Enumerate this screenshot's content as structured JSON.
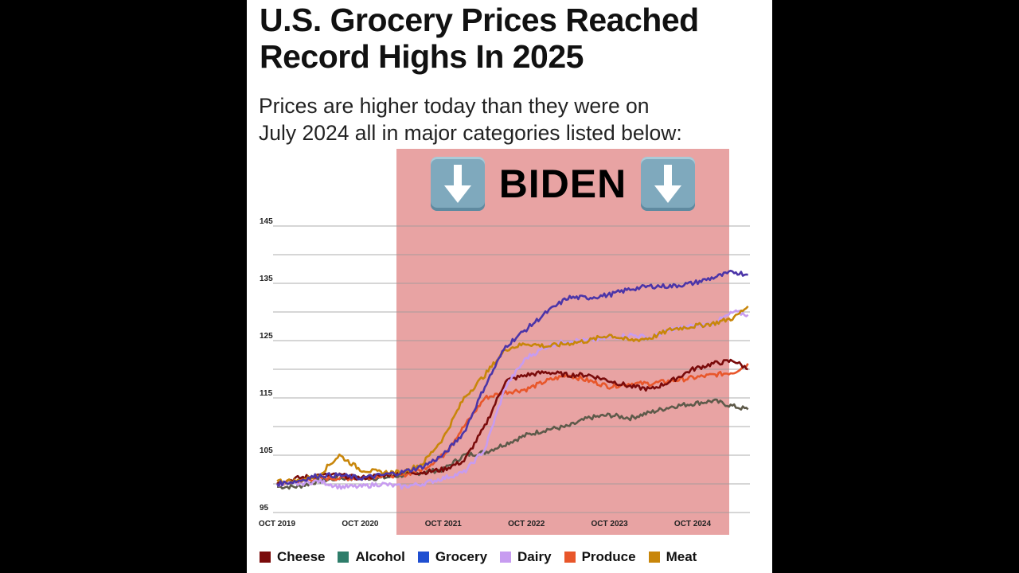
{
  "title": "U.S. Grocery Prices Reached Record Highs In 2025",
  "subtitle_lines": [
    "Prices are higher today than they were on",
    "July 2024 all in major categories listed below:"
  ],
  "banner": {
    "text": "BIDEN",
    "icon": "down-arrow-emoji-icon"
  },
  "chart_data": {
    "type": "line",
    "title": "U.S. Grocery Prices Reached Record Highs In 2025",
    "xlabel": "",
    "ylabel": "",
    "x_units": "months since Oct 2019",
    "x": [
      0,
      3,
      6,
      9,
      12,
      15,
      18,
      21,
      24,
      27,
      30,
      33,
      36,
      39,
      42,
      45,
      48,
      51,
      54,
      57,
      60,
      63,
      66,
      68
    ],
    "xlim": [
      0,
      68
    ],
    "ylim": [
      95,
      145
    ],
    "grid": true,
    "yticks": [
      95,
      105,
      115,
      125,
      135,
      145
    ],
    "xtick_labels": [
      {
        "x": 0,
        "label": "OCT 2019"
      },
      {
        "x": 12,
        "label": "OCT 2020"
      },
      {
        "x": 24,
        "label": "OCT 2021"
      },
      {
        "x": 36,
        "label": "OCT 2022"
      },
      {
        "x": 48,
        "label": "OCT 2023"
      },
      {
        "x": 60,
        "label": "OCT 2024"
      }
    ],
    "shaded_region": {
      "label": "BIDEN",
      "x": [
        17.2,
        65.3
      ],
      "color": "#e8a3a3"
    },
    "legend_position": "bottom",
    "series": [
      {
        "name": "Cheese",
        "color": "#7a0b0b",
        "values": [
          100,
          101,
          101.5,
          101.5,
          101,
          101.5,
          102,
          102,
          102.5,
          104,
          110,
          118,
          119,
          119.5,
          119,
          119,
          118,
          117,
          116.5,
          118,
          120,
          121,
          121.5,
          120
        ]
      },
      {
        "name": "Alcohol",
        "color": "#2e7d6a",
        "line_color": "#5e5a4a",
        "values": [
          99.5,
          99.5,
          100.5,
          101,
          101,
          101,
          101.5,
          102,
          102.5,
          105,
          105.5,
          107,
          108.5,
          109.5,
          110,
          111.5,
          112,
          111.5,
          112.5,
          113.5,
          114,
          114.5,
          113.5,
          113
        ]
      },
      {
        "name": "Grocery",
        "color": "#1f4fd1",
        "line_color": "#4b35a8",
        "values": [
          100,
          100.5,
          101.5,
          101.5,
          101,
          101.5,
          102,
          103,
          105,
          109,
          117,
          124,
          127,
          130,
          132.5,
          132.5,
          133,
          134,
          134.5,
          134.5,
          135,
          136,
          137,
          136.5
        ]
      },
      {
        "name": "Dairy",
        "color": "#c79cf0",
        "values": [
          100,
          100,
          100.5,
          99.5,
          99.5,
          100,
          99.5,
          100,
          101,
          102,
          106,
          117,
          122,
          124,
          125,
          125,
          125.5,
          126,
          125.5,
          127,
          127.5,
          128,
          130,
          129.5
        ]
      },
      {
        "name": "Produce",
        "color": "#e8562a",
        "values": [
          100,
          100.5,
          101,
          101,
          101,
          101.5,
          101.5,
          102.5,
          105,
          110,
          115,
          116,
          116.5,
          118,
          119,
          118,
          117,
          117.5,
          117.5,
          118,
          118.5,
          119,
          119.5,
          121
        ]
      },
      {
        "name": "Meat",
        "color": "#c8860a",
        "values": [
          100.5,
          100.5,
          101.5,
          105,
          102.5,
          102,
          102,
          103.5,
          108,
          115,
          119,
          123.5,
          124.5,
          124,
          124.5,
          125,
          126,
          125,
          125.5,
          127,
          127.5,
          128,
          129,
          131
        ]
      }
    ]
  }
}
